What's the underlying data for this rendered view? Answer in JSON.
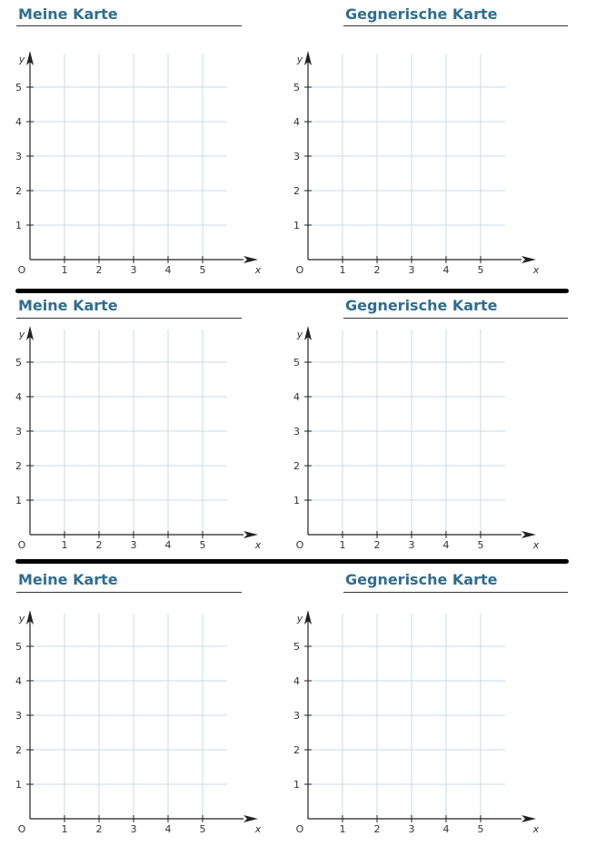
{
  "sections": [
    {
      "left_title": "Meine Karte",
      "right_title": "Gegnerische Karte"
    },
    {
      "left_title": "Meine Karte",
      "right_title": "Gegnerische Karte"
    },
    {
      "left_title": "Meine Karte",
      "right_title": "Gegnerische Karte"
    }
  ],
  "chart_data": {
    "type": "grid",
    "x_ticks": [
      "1",
      "2",
      "3",
      "4",
      "5"
    ],
    "y_ticks": [
      "1",
      "2",
      "3",
      "4",
      "5"
    ],
    "origin_label": "O",
    "xlabel": "x",
    "ylabel": "y",
    "xlim": [
      0,
      5
    ],
    "ylim": [
      0,
      5
    ],
    "grid": true,
    "count": 6
  },
  "colors": {
    "heading": "#2f6d8e",
    "grid_line": "#c8dbea",
    "axis": "#222222"
  }
}
